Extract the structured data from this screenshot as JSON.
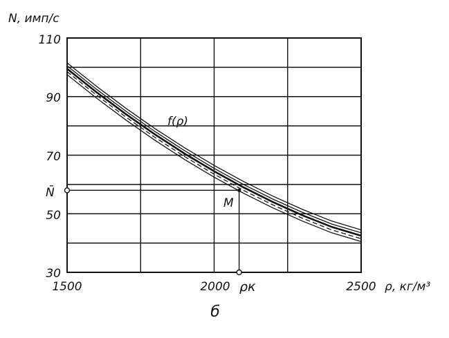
{
  "chart_data": {
    "type": "line",
    "y_axis_label": "N, имп/с",
    "x_axis_label": "ρ, кг/м³",
    "x_ticks": [
      1500,
      2000,
      2500
    ],
    "y_ticks": [
      30,
      50,
      70,
      90,
      110
    ],
    "x_tick_labels": [
      "1500",
      "2000",
      "2500"
    ],
    "y_tick_labels": [
      "30",
      "50",
      "70",
      "90",
      "110"
    ],
    "xlim": [
      1500,
      2500
    ],
    "ylim": [
      30,
      110
    ],
    "grid": true,
    "curve_label": "f(ρ)",
    "point_label": "M",
    "marker_y_label": "N̄",
    "marker_x_label": "ρк",
    "marker_point": {
      "x": 2085,
      "y": 58
    },
    "subfigure_label": "б",
    "series": [
      {
        "x": [
          1500,
          1600,
          1700,
          1800,
          1900,
          2000,
          2100,
          2200,
          2300,
          2400,
          2500
        ],
        "y": [
          101.5,
          93.5,
          86.0,
          79.0,
          72.5,
          66.5,
          61.0,
          56.0,
          51.5,
          47.5,
          44.5
        ]
      },
      {
        "x": [
          1500,
          1600,
          1700,
          1800,
          1900,
          2000,
          2100,
          2200,
          2300,
          2400,
          2500
        ],
        "y": [
          100.5,
          92.5,
          85.0,
          78.0,
          71.5,
          65.5,
          60.0,
          55.0,
          50.5,
          46.5,
          43.5
        ]
      },
      {
        "x": [
          1500,
          1600,
          1700,
          1800,
          1900,
          2000,
          2100,
          2200,
          2300,
          2400,
          2500
        ],
        "y": [
          99.5,
          91.5,
          84.0,
          77.0,
          70.5,
          64.5,
          59.0,
          54.0,
          49.5,
          45.5,
          42.5
        ],
        "style": "bold"
      },
      {
        "x": [
          1500,
          1600,
          1700,
          1800,
          1900,
          2000,
          2100,
          2200,
          2300,
          2400,
          2500
        ],
        "y": [
          98.5,
          90.5,
          83.0,
          76.0,
          69.5,
          63.5,
          58.0,
          53.0,
          48.5,
          44.5,
          41.5
        ],
        "style": "dashed"
      },
      {
        "x": [
          1500,
          1600,
          1700,
          1800,
          1900,
          2000,
          2100,
          2200,
          2300,
          2400,
          2500
        ],
        "y": [
          97.5,
          89.5,
          82.0,
          75.0,
          68.5,
          62.5,
          57.0,
          52.0,
          47.5,
          43.5,
          40.5
        ]
      }
    ]
  }
}
